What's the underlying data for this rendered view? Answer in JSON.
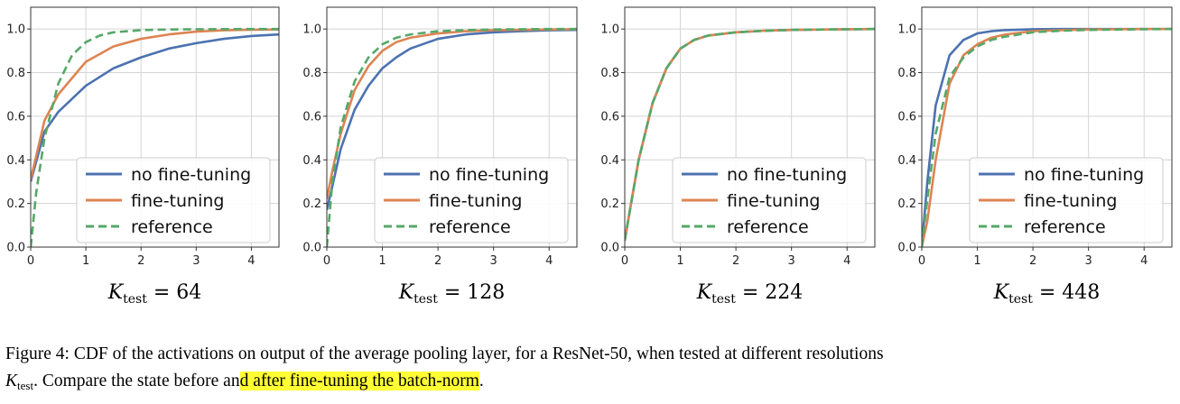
{
  "chart_data": [
    {
      "type": "line",
      "caption": {
        "var": "K",
        "sub": "test",
        "rest": " = 64"
      },
      "xlim": [
        0,
        4.5
      ],
      "ylim": [
        0,
        1.1
      ],
      "x_ticks": [
        "0",
        "1",
        "2",
        "3",
        "4"
      ],
      "y_ticks": [
        "0.0",
        "0.2",
        "0.4",
        "0.6",
        "0.8",
        "1.0"
      ],
      "grid": true,
      "legend_position": "lower right",
      "series": [
        {
          "name": "no fine-tuning",
          "color": "#4c72b0",
          "dash": "solid",
          "x": [
            0,
            0.25,
            0.5,
            1,
            1.5,
            2,
            2.5,
            3,
            3.5,
            4,
            4.5
          ],
          "y": [
            0.3,
            0.53,
            0.62,
            0.74,
            0.82,
            0.87,
            0.91,
            0.935,
            0.955,
            0.968,
            0.975
          ]
        },
        {
          "name": "fine-tuning",
          "color": "#dd8452",
          "dash": "solid",
          "x": [
            0,
            0.25,
            0.5,
            1,
            1.5,
            2,
            2.5,
            3,
            3.5,
            4,
            4.5
          ],
          "y": [
            0.31,
            0.58,
            0.7,
            0.85,
            0.92,
            0.955,
            0.975,
            0.988,
            0.994,
            0.997,
            0.998
          ]
        },
        {
          "name": "reference",
          "color": "#55a868",
          "dash": "dashed",
          "x": [
            0,
            0.1,
            0.25,
            0.5,
            0.75,
            1,
            1.25,
            1.5,
            2,
            2.5,
            3,
            4,
            4.5
          ],
          "y": [
            0,
            0.25,
            0.5,
            0.75,
            0.88,
            0.94,
            0.97,
            0.985,
            0.995,
            0.998,
            0.999,
            1.0,
            1.0
          ]
        }
      ]
    },
    {
      "type": "line",
      "caption": {
        "var": "K",
        "sub": "test",
        "rest": " = 128"
      },
      "xlim": [
        0,
        4.5
      ],
      "ylim": [
        0,
        1.1
      ],
      "x_ticks": [
        "0",
        "1",
        "2",
        "3",
        "4"
      ],
      "y_ticks": [
        "0.0",
        "0.2",
        "0.4",
        "0.6",
        "0.8",
        "1.0"
      ],
      "grid": true,
      "legend_position": "lower right",
      "series": [
        {
          "name": "no fine-tuning",
          "color": "#4c72b0",
          "dash": "solid",
          "x": [
            0,
            0.1,
            0.25,
            0.5,
            0.75,
            1,
            1.25,
            1.5,
            2,
            2.5,
            3,
            3.5,
            4,
            4.5
          ],
          "y": [
            0.17,
            0.28,
            0.45,
            0.63,
            0.74,
            0.82,
            0.87,
            0.91,
            0.955,
            0.975,
            0.985,
            0.99,
            0.994,
            0.996
          ]
        },
        {
          "name": "fine-tuning",
          "color": "#dd8452",
          "dash": "solid",
          "x": [
            0,
            0.1,
            0.25,
            0.5,
            0.75,
            1,
            1.25,
            1.5,
            2,
            2.5,
            3,
            4,
            4.5
          ],
          "y": [
            0.22,
            0.35,
            0.52,
            0.72,
            0.83,
            0.9,
            0.94,
            0.96,
            0.98,
            0.99,
            0.995,
            0.998,
            0.999
          ]
        },
        {
          "name": "reference",
          "color": "#55a868",
          "dash": "dashed",
          "x": [
            0,
            0.1,
            0.25,
            0.5,
            0.75,
            1,
            1.25,
            1.5,
            2,
            2.5,
            3,
            4,
            4.5
          ],
          "y": [
            0,
            0.3,
            0.55,
            0.76,
            0.87,
            0.93,
            0.96,
            0.975,
            0.99,
            0.995,
            0.998,
            1.0,
            1.0
          ]
        }
      ]
    },
    {
      "type": "line",
      "caption": {
        "var": "K",
        "sub": "test",
        "rest": " = 224"
      },
      "xlim": [
        0,
        4.5
      ],
      "ylim": [
        0,
        1.1
      ],
      "x_ticks": [
        "0",
        "1",
        "2",
        "3",
        "4"
      ],
      "y_ticks": [
        "0.0",
        "0.2",
        "0.4",
        "0.6",
        "0.8",
        "1.0"
      ],
      "grid": true,
      "legend_position": "lower right",
      "series": [
        {
          "name": "no fine-tuning",
          "color": "#4c72b0",
          "dash": "solid",
          "x": [
            0,
            0.1,
            0.25,
            0.5,
            0.75,
            1,
            1.25,
            1.5,
            2,
            2.5,
            3,
            4,
            4.5
          ],
          "y": [
            0.03,
            0.18,
            0.4,
            0.66,
            0.82,
            0.91,
            0.95,
            0.97,
            0.985,
            0.992,
            0.996,
            0.999,
            1.0
          ]
        },
        {
          "name": "fine-tuning",
          "color": "#dd8452",
          "dash": "solid",
          "x": [
            0,
            0.1,
            0.25,
            0.5,
            0.75,
            1,
            1.25,
            1.5,
            2,
            2.5,
            3,
            4,
            4.5
          ],
          "y": [
            0.03,
            0.18,
            0.4,
            0.66,
            0.82,
            0.91,
            0.95,
            0.97,
            0.985,
            0.992,
            0.996,
            0.999,
            1.0
          ]
        },
        {
          "name": "reference",
          "color": "#55a868",
          "dash": "dashed",
          "x": [
            0,
            0.1,
            0.25,
            0.5,
            0.75,
            1,
            1.25,
            1.5,
            2,
            2.5,
            3,
            4,
            4.5
          ],
          "y": [
            0.03,
            0.18,
            0.4,
            0.66,
            0.82,
            0.91,
            0.95,
            0.97,
            0.985,
            0.992,
            0.996,
            0.999,
            1.0
          ]
        }
      ]
    },
    {
      "type": "line",
      "caption": {
        "var": "K",
        "sub": "test",
        "rest": " = 448"
      },
      "xlim": [
        0,
        4.5
      ],
      "ylim": [
        0,
        1.1
      ],
      "x_ticks": [
        "0",
        "1",
        "2",
        "3",
        "4"
      ],
      "y_ticks": [
        "0.0",
        "0.2",
        "0.4",
        "0.6",
        "0.8",
        "1.0"
      ],
      "grid": true,
      "legend_position": "lower right",
      "series": [
        {
          "name": "no fine-tuning",
          "color": "#4c72b0",
          "dash": "solid",
          "x": [
            0,
            0.1,
            0.25,
            0.5,
            0.75,
            1,
            1.25,
            1.5,
            2,
            2.5,
            3,
            4,
            4.5
          ],
          "y": [
            0,
            0.3,
            0.65,
            0.88,
            0.95,
            0.98,
            0.99,
            0.995,
            0.999,
            1.0,
            1.0,
            1.0,
            1.0
          ]
        },
        {
          "name": "fine-tuning",
          "color": "#dd8452",
          "dash": "solid",
          "x": [
            0,
            0.1,
            0.25,
            0.5,
            0.75,
            1,
            1.25,
            1.5,
            2,
            2.5,
            3,
            4,
            4.5
          ],
          "y": [
            0,
            0.12,
            0.4,
            0.75,
            0.88,
            0.93,
            0.96,
            0.975,
            0.99,
            0.995,
            0.998,
            1.0,
            1.0
          ]
        },
        {
          "name": "reference",
          "color": "#55a868",
          "dash": "dashed",
          "x": [
            0,
            0.1,
            0.25,
            0.5,
            0.75,
            1,
            1.25,
            1.5,
            2,
            2.5,
            3,
            4,
            4.5
          ],
          "y": [
            0,
            0.22,
            0.52,
            0.78,
            0.87,
            0.92,
            0.95,
            0.965,
            0.985,
            0.992,
            0.996,
            0.999,
            1.0
          ]
        }
      ]
    }
  ],
  "figure_caption": {
    "lead": "Figure 4:",
    "text1": "  CDF of the activations on output of the average pooling layer, for a ResNet-50, when tested at different resolutions",
    "k_var": "K",
    "k_sub": "test",
    "text2": ". Compare the state before an",
    "highlight": "d after fine-tuning the batch-norm",
    "text3": "."
  }
}
